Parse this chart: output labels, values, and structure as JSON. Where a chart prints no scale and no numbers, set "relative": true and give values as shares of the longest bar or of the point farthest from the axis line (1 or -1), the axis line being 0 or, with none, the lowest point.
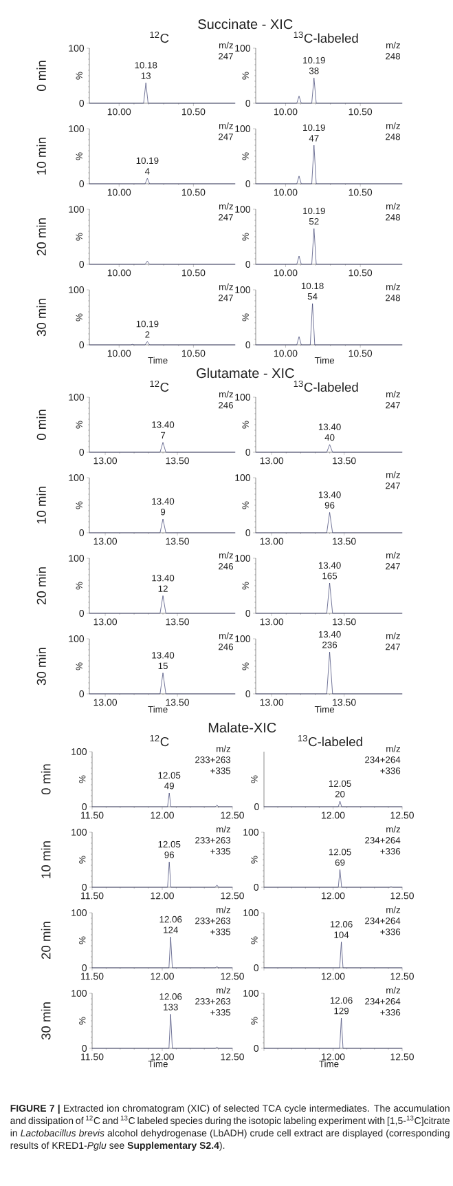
{
  "chart_data": [
    {
      "type": "line",
      "title": "Succinate - XIC",
      "subtitle": "$^{12}$C",
      "ylabel": "%",
      "x": [
        9.8,
        10.165,
        10.18,
        10.195,
        10.78
      ],
      "values": [
        0,
        0,
        37,
        0,
        0
      ],
      "color": "#2e3266",
      "xlim": [
        9.8,
        10.78
      ],
      "ylim": [
        0,
        100
      ],
      "xticks": [
        {
          "value": 10,
          "label": "10.00"
        },
        {
          "value": 10.5,
          "label": "10.50"
        }
      ],
      "yticks": [
        0,
        100
      ],
      "annotations": [
        "0 min",
        "m/z",
        "247",
        {
          "text": "10.18",
          "x": 10.18,
          "y": 37
        },
        {
          "text": "13",
          "x": 10.18,
          "y": 37
        }
      ]
    },
    {
      "type": "line",
      "subtitle": "$^{13}$C-labeled",
      "ylabel": "%",
      "x": [
        9.8,
        10.075,
        10.09,
        10.105,
        10.175,
        10.19,
        10.205,
        10.78
      ],
      "values": [
        0,
        0,
        13,
        0,
        0,
        46,
        0,
        0
      ],
      "color": "#2e3266",
      "xlim": [
        9.8,
        10.78
      ],
      "ylim": [
        0,
        100
      ],
      "xticks": [
        {
          "value": 10,
          "label": "10.00"
        },
        {
          "value": 10.5,
          "label": "10.50"
        }
      ],
      "yticks": [
        0,
        100
      ],
      "annotations": [
        "m/z",
        "248",
        {
          "text": "10.19",
          "x": 10.19,
          "y": 46
        },
        {
          "text": "38",
          "x": 10.19,
          "y": 46
        }
      ]
    },
    {
      "type": "line",
      "ylabel": "%",
      "x": [
        9.8,
        10.175,
        10.19,
        10.205,
        10.78
      ],
      "values": [
        0,
        0,
        10,
        0,
        0
      ],
      "color": "#2e3266",
      "xlim": [
        9.8,
        10.78
      ],
      "ylim": [
        0,
        100
      ],
      "xticks": [
        {
          "value": 10,
          "label": "10.00"
        },
        {
          "value": 10.5,
          "label": "10.50"
        }
      ],
      "yticks": [
        0,
        100
      ],
      "annotations": [
        "10 min",
        "m/z",
        "247",
        {
          "text": "10.19",
          "x": 10.19,
          "y": 10
        },
        {
          "text": "4",
          "x": 10.19,
          "y": 10
        }
      ]
    },
    {
      "type": "line",
      "ylabel": "%",
      "x": [
        9.8,
        10.075,
        10.09,
        10.105,
        10.175,
        10.19,
        10.205,
        10.78
      ],
      "values": [
        0,
        0,
        14,
        0,
        0,
        70,
        0,
        0
      ],
      "color": "#2e3266",
      "xlim": [
        9.8,
        10.78
      ],
      "ylim": [
        0,
        100
      ],
      "xticks": [
        {
          "value": 10,
          "label": "10.00"
        },
        {
          "value": 10.5,
          "label": "10.50"
        }
      ],
      "yticks": [
        0,
        100
      ],
      "annotations": [
        "m/z",
        "248",
        {
          "text": "10.19",
          "x": 10.19,
          "y": 70
        },
        {
          "text": "47",
          "x": 10.19,
          "y": 70
        }
      ]
    },
    {
      "type": "line",
      "ylabel": "%",
      "x": [
        9.8,
        10.175,
        10.19,
        10.205,
        10.78
      ],
      "values": [
        0,
        0,
        6,
        0,
        0
      ],
      "color": "#2e3266",
      "xlim": [
        9.8,
        10.78
      ],
      "ylim": [
        0,
        100
      ],
      "xticks": [
        {
          "value": 10,
          "label": "10.00"
        },
        {
          "value": 10.5,
          "label": "10.50"
        }
      ],
      "yticks": [
        0,
        100
      ],
      "annotations": [
        "20 min",
        "m/z",
        "247"
      ]
    },
    {
      "type": "line",
      "ylabel": "%",
      "x": [
        9.8,
        10.075,
        10.09,
        10.105,
        10.175,
        10.19,
        10.205,
        10.78
      ],
      "values": [
        0,
        0,
        15,
        0,
        0,
        65,
        0,
        0
      ],
      "color": "#2e3266",
      "xlim": [
        9.8,
        10.78
      ],
      "ylim": [
        0,
        100
      ],
      "xticks": [
        {
          "value": 10,
          "label": "10.00"
        },
        {
          "value": 10.5,
          "label": "10.50"
        }
      ],
      "yticks": [
        0,
        100
      ],
      "annotations": [
        "m/z",
        "248",
        {
          "text": "10.19",
          "x": 10.19,
          "y": 65
        },
        {
          "text": "52",
          "x": 10.19,
          "y": 65
        }
      ]
    },
    {
      "type": "line",
      "xlabel": "Time",
      "ylabel": "%",
      "x": [
        9.8,
        10.08,
        10.09,
        10.1,
        10.175,
        10.19,
        10.205,
        10.78
      ],
      "values": [
        0,
        0,
        1,
        0,
        0,
        6,
        0,
        0
      ],
      "color": "#2e3266",
      "xlim": [
        9.8,
        10.78
      ],
      "ylim": [
        0,
        100
      ],
      "xticks": [
        {
          "value": 10,
          "label": "10.00"
        },
        {
          "value": 10.5,
          "label": "10.50"
        }
      ],
      "yticks": [
        0,
        100
      ],
      "annotations": [
        "30 min",
        "m/z",
        "247",
        {
          "text": "10.19",
          "x": 10.19,
          "y": 6
        },
        {
          "text": "2",
          "x": 10.19,
          "y": 6
        }
      ]
    },
    {
      "type": "line",
      "xlabel": "Time",
      "ylabel": "%",
      "x": [
        9.8,
        10.075,
        10.09,
        10.105,
        10.165,
        10.18,
        10.195,
        10.78
      ],
      "values": [
        0,
        0,
        15,
        0,
        0,
        75,
        0,
        0
      ],
      "color": "#2e3266",
      "xlim": [
        9.8,
        10.78
      ],
      "ylim": [
        0,
        100
      ],
      "xticks": [
        {
          "value": 10,
          "label": "10.00"
        },
        {
          "value": 10.5,
          "label": "10.50"
        }
      ],
      "yticks": [
        0,
        100
      ],
      "annotations": [
        "m/z",
        "248",
        {
          "text": "10.18",
          "x": 10.18,
          "y": 75
        },
        {
          "text": "54",
          "x": 10.18,
          "y": 75
        }
      ]
    },
    {
      "type": "line",
      "title": "Glutamate - XIC",
      "subtitle": "$^{12}$C",
      "ylabel": "%",
      "x": [
        12.89,
        13.38,
        13.4,
        13.42,
        13.9
      ],
      "values": [
        0,
        0,
        18,
        0,
        0
      ],
      "color": "#2e3266",
      "xlim": [
        12.89,
        13.9
      ],
      "ylim": [
        0,
        100
      ],
      "xticks": [
        {
          "value": 13,
          "label": "13.00"
        },
        {
          "value": 13.5,
          "label": "13.50"
        }
      ],
      "yticks": [
        0,
        100
      ],
      "annotations": [
        "0 min",
        "m/z",
        "246",
        {
          "text": "13.40",
          "x": 13.4,
          "y": 18
        },
        {
          "text": "7",
          "x": 13.4,
          "y": 18
        }
      ]
    },
    {
      "type": "line",
      "subtitle": "$^{13}$C-labeled",
      "ylabel": "%",
      "x": [
        12.89,
        13.38,
        13.4,
        13.42,
        13.9
      ],
      "values": [
        0,
        0,
        14,
        0,
        0
      ],
      "color": "#2e3266",
      "xlim": [
        12.89,
        13.9
      ],
      "ylim": [
        0,
        100
      ],
      "xticks": [
        {
          "value": 13,
          "label": "13.00"
        },
        {
          "value": 13.5,
          "label": "13.50"
        }
      ],
      "yticks": [
        0,
        100
      ],
      "annotations": [
        "m/z",
        "247",
        {
          "text": "13.40",
          "x": 13.4,
          "y": 14
        },
        {
          "text": "40",
          "x": 13.4,
          "y": 14
        }
      ]
    },
    {
      "type": "line",
      "ylabel": "%",
      "x": [
        12.89,
        13.38,
        13.4,
        13.42,
        13.9
      ],
      "values": [
        0,
        0,
        25,
        0,
        0
      ],
      "color": "#2e3266",
      "xlim": [
        12.89,
        13.9
      ],
      "ylim": [
        0,
        100
      ],
      "xticks": [
        {
          "value": 13,
          "label": "13.00"
        },
        {
          "value": 13.5,
          "label": "13.50"
        }
      ],
      "yticks": [
        0,
        100
      ],
      "annotations": [
        "10 min",
        {
          "text": "13.40",
          "x": 13.4,
          "y": 25
        },
        {
          "text": "9",
          "x": 13.4,
          "y": 25
        }
      ]
    },
    {
      "type": "line",
      "ylabel": "%",
      "x": [
        12.89,
        13.38,
        13.4,
        13.42,
        13.9
      ],
      "values": [
        0,
        0,
        37,
        0,
        0
      ],
      "color": "#2e3266",
      "xlim": [
        12.89,
        13.9
      ],
      "ylim": [
        0,
        100
      ],
      "xticks": [
        {
          "value": 13,
          "label": "13.00"
        },
        {
          "value": 13.5,
          "label": "13.50"
        }
      ],
      "yticks": [
        0,
        100
      ],
      "annotations": [
        "m/z",
        "247",
        {
          "text": "13.40",
          "x": 13.4,
          "y": 37
        },
        {
          "text": "96",
          "x": 13.4,
          "y": 37
        }
      ]
    },
    {
      "type": "line",
      "ylabel": "%",
      "x": [
        12.89,
        13.38,
        13.4,
        13.42,
        13.9
      ],
      "values": [
        0,
        0,
        32,
        0,
        0
      ],
      "color": "#2e3266",
      "xlim": [
        12.89,
        13.9
      ],
      "ylim": [
        0,
        100
      ],
      "xticks": [
        {
          "value": 13,
          "label": "13.00"
        },
        {
          "value": 13.5,
          "label": "13.50"
        }
      ],
      "yticks": [
        0,
        100
      ],
      "annotations": [
        "20 min",
        "m/z",
        "246",
        {
          "text": "13.40",
          "x": 13.4,
          "y": 32
        },
        {
          "text": "12",
          "x": 13.4,
          "y": 32
        }
      ]
    },
    {
      "type": "line",
      "ylabel": "%",
      "x": [
        12.89,
        13.38,
        13.4,
        13.42,
        13.9
      ],
      "values": [
        0,
        0,
        55,
        0,
        0
      ],
      "color": "#2e3266",
      "xlim": [
        12.89,
        13.9
      ],
      "ylim": [
        0,
        100
      ],
      "xticks": [
        {
          "value": 13,
          "label": "13.00"
        },
        {
          "value": 13.5,
          "label": "13.50"
        }
      ],
      "yticks": [
        0,
        100
      ],
      "annotations": [
        "m/z",
        "247",
        {
          "text": "13.40",
          "x": 13.4,
          "y": 55
        },
        {
          "text": "165",
          "x": 13.4,
          "y": 55
        }
      ]
    },
    {
      "type": "line",
      "xlabel": "Time",
      "ylabel": "%",
      "x": [
        12.89,
        13.38,
        13.4,
        13.42,
        13.9
      ],
      "values": [
        0,
        0,
        38,
        0,
        0
      ],
      "color": "#2e3266",
      "xlim": [
        12.89,
        13.9
      ],
      "ylim": [
        0,
        100
      ],
      "xticks": [
        {
          "value": 13,
          "label": "13.00"
        },
        {
          "value": 13.5,
          "label": "13.50"
        }
      ],
      "yticks": [
        0,
        100
      ],
      "annotations": [
        "30 min",
        "m/z",
        "246",
        {
          "text": "13.40",
          "x": 13.4,
          "y": 38
        },
        {
          "text": "15",
          "x": 13.4,
          "y": 38
        }
      ]
    },
    {
      "type": "line",
      "xlabel": "Time",
      "ylabel": "%",
      "x": [
        12.89,
        13.38,
        13.4,
        13.42,
        13.9
      ],
      "values": [
        0,
        0,
        76,
        0,
        0
      ],
      "color": "#2e3266",
      "xlim": [
        12.89,
        13.9
      ],
      "ylim": [
        0,
        100
      ],
      "xticks": [
        {
          "value": 13,
          "label": "13.00"
        },
        {
          "value": 13.5,
          "label": "13.50"
        }
      ],
      "yticks": [
        0,
        100
      ],
      "annotations": [
        "m/z",
        "247",
        {
          "text": "13.40",
          "x": 13.4,
          "y": 76
        },
        {
          "text": "236",
          "x": 13.4,
          "y": 76
        }
      ]
    },
    {
      "type": "line",
      "title": "Malate-XIC",
      "subtitle": "$^{12}$C",
      "ylabel": "%",
      "x": [
        11.5,
        12.038,
        12.05,
        12.062,
        12.378,
        12.39,
        12.402,
        12.5
      ],
      "values": [
        0,
        0,
        25,
        0,
        0,
        3,
        0,
        0
      ],
      "color": "#2e3266",
      "xlim": [
        11.5,
        12.5
      ],
      "ylim": [
        0,
        100
      ],
      "xticks": [
        {
          "value": 11.5,
          "label": "11.50"
        },
        {
          "value": 12,
          "label": "12.00"
        },
        {
          "value": 12.5,
          "label": "12.50"
        }
      ],
      "yticks": [
        0,
        100
      ],
      "annotations": [
        "0 min",
        "m/z",
        "233+263",
        "+335",
        {
          "text": "12.05",
          "x": 12.05,
          "y": 25
        },
        {
          "text": "49",
          "x": 12.05,
          "y": 25
        }
      ]
    },
    {
      "type": "line",
      "subtitle": "$^{13}$C-labeled",
      "ylabel": "%",
      "x": [
        11.5,
        12.038,
        12.05,
        12.062,
        12.5
      ],
      "values": [
        0,
        0,
        1,
        0,
        0
      ],
      "relative": true,
      "color": "#2e3266",
      "xlim": [
        11.5,
        12.5
      ],
      "xticks": [
        {
          "value": 11.5,
          "label": null
        },
        {
          "value": 12,
          "label": "12.00"
        },
        {
          "value": 12.5,
          "label": "12.50"
        }
      ],
      "annotations": [
        "0",
        "m/z",
        "234+264",
        "+336",
        {
          "text": "12.05",
          "x": 12.05,
          "y": 1
        },
        {
          "text": "20",
          "x": 12.05,
          "y": 1
        }
      ]
    },
    {
      "type": "line",
      "ylabel": "%",
      "x": [
        11.5,
        12.038,
        12.05,
        12.062,
        12.378,
        12.39,
        12.402,
        12.5
      ],
      "values": [
        0,
        0,
        46,
        0,
        0,
        4,
        0,
        0
      ],
      "color": "#2e3266",
      "xlim": [
        11.5,
        12.5
      ],
      "ylim": [
        0,
        100
      ],
      "xticks": [
        {
          "value": 11.5,
          "label": "11.50"
        },
        {
          "value": 12,
          "label": "12.00"
        },
        {
          "value": 12.5,
          "label": "12.50"
        }
      ],
      "yticks": [
        0,
        100
      ],
      "annotations": [
        "10 min",
        "m/z",
        "233+263",
        "+335",
        {
          "text": "12.05",
          "x": 12.05,
          "y": 46
        },
        {
          "text": "96",
          "x": 12.05,
          "y": 46
        }
      ]
    },
    {
      "type": "line",
      "ylabel": "%",
      "x": [
        11.5,
        12.038,
        12.05,
        12.062,
        12.408,
        12.42,
        12.432,
        12.5
      ],
      "values": [
        0,
        0,
        32,
        0,
        0,
        1,
        0,
        0
      ],
      "color": "#2e3266",
      "xlim": [
        11.5,
        12.5
      ],
      "ylim": [
        0,
        100
      ],
      "xticks": [
        {
          "value": 11.5,
          "label": null
        },
        {
          "value": 12,
          "label": "12.00"
        },
        {
          "value": 12.5,
          "label": "12.50"
        }
      ],
      "yticks": [
        0,
        100
      ],
      "annotations": [
        "m/z",
        "234+264",
        "+336",
        {
          "text": "12.05",
          "x": 12.05,
          "y": 32
        },
        {
          "text": "69",
          "x": 12.05,
          "y": 32
        }
      ]
    },
    {
      "type": "line",
      "ylabel": "%",
      "x": [
        11.5,
        12.048,
        12.06,
        12.072,
        12.378,
        12.39,
        12.402,
        12.5
      ],
      "values": [
        0,
        0,
        56,
        0,
        0,
        2,
        0,
        0
      ],
      "color": "#2e3266",
      "xlim": [
        11.5,
        12.5
      ],
      "ylim": [
        0,
        100
      ],
      "xticks": [
        {
          "value": 11.5,
          "label": "11.50"
        },
        {
          "value": 12,
          "label": "12.00"
        },
        {
          "value": 12.5,
          "label": "12.50"
        }
      ],
      "yticks": [
        0,
        100
      ],
      "annotations": [
        "20 min",
        "m/z",
        "233+263",
        "+335",
        {
          "text": "12.06",
          "x": 12.06,
          "y": 56
        },
        {
          "text": "124",
          "x": 12.06,
          "y": 56
        }
      ]
    },
    {
      "type": "line",
      "ylabel": "%",
      "x": [
        11.5,
        12.048,
        12.06,
        12.072,
        12.5
      ],
      "values": [
        0,
        0,
        47,
        0,
        0
      ],
      "color": "#2e3266",
      "xlim": [
        11.5,
        12.5
      ],
      "ylim": [
        0,
        100
      ],
      "xticks": [
        {
          "value": 11.5,
          "label": null
        },
        {
          "value": 12,
          "label": "12.00"
        },
        {
          "value": 12.5,
          "label": "12.50"
        }
      ],
      "yticks": [
        0,
        100
      ],
      "annotations": [
        "m/z",
        "234+264",
        "+336",
        {
          "text": "12.06",
          "x": 12.06,
          "y": 47
        },
        {
          "text": "104",
          "x": 12.06,
          "y": 47
        }
      ]
    },
    {
      "type": "line",
      "xlabel": "Time",
      "ylabel": "%",
      "x": [
        11.5,
        12.048,
        12.06,
        12.072,
        12.378,
        12.39,
        12.402,
        12.5
      ],
      "values": [
        0,
        0,
        62,
        0,
        0,
        2,
        0,
        0
      ],
      "color": "#2e3266",
      "xlim": [
        11.5,
        12.5
      ],
      "ylim": [
        0,
        100
      ],
      "xticks": [
        {
          "value": 11.5,
          "label": "11.50"
        },
        {
          "value": 12,
          "label": "12.00"
        },
        {
          "value": 12.5,
          "label": "12.50"
        }
      ],
      "yticks": [
        0,
        100
      ],
      "annotations": [
        "30 min",
        "m/z",
        "233+263",
        "+335",
        {
          "text": "12.06",
          "x": 12.06,
          "y": 62
        },
        {
          "text": "133",
          "x": 12.06,
          "y": 62
        }
      ]
    },
    {
      "type": "line",
      "xlabel": "Time",
      "ylabel": "%",
      "x": [
        11.5,
        12.048,
        12.06,
        12.072,
        12.5
      ],
      "values": [
        0,
        0,
        55,
        0,
        0
      ],
      "color": "#2e3266",
      "xlim": [
        11.5,
        12.5
      ],
      "ylim": [
        0,
        100
      ],
      "xticks": [
        {
          "value": 11.5,
          "label": null
        },
        {
          "value": 12,
          "label": "12.00"
        },
        {
          "value": 12.5,
          "label": "12.50"
        }
      ],
      "yticks": [
        0,
        100
      ],
      "annotations": [
        "m/z",
        "234+264",
        "+336",
        {
          "text": "12.06",
          "x": 12.06,
          "y": 55
        },
        {
          "text": "129",
          "x": 12.06,
          "y": 55
        }
      ]
    },
    {
      "type": "other",
      "annotations": [
        "**FIGURE 7 |** Extracted ion chromatogram (XIC) of selected TCA cycle intermediates. The accumulation and dissipation of $^{12}$C and $^{13}$C labeled species during the isotopic labeling experiment with [1,5-$^{13}$C]citrate in *Lactobacillus brevis* alcohol dehydrogenase (LbADH) crude cell extract are displayed (corresponding results of KRED1-*Pglu* see **Supplementary S2.4**)."
      ]
    }
  ]
}
